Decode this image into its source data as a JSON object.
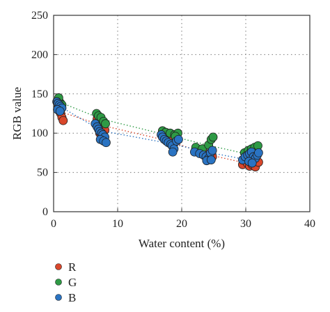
{
  "chart_data": {
    "type": "scatter",
    "title": "",
    "xlabel": "Water content (%)",
    "ylabel": "RGB value",
    "xlim": [
      0,
      40
    ],
    "ylim": [
      0,
      250
    ],
    "xticks": [
      0,
      10,
      20,
      30,
      40
    ],
    "yticks": [
      0,
      50,
      100,
      150,
      200,
      250
    ],
    "grid": true,
    "legend_position": "bottom-left",
    "series": [
      {
        "name": "R",
        "color": "#d9472b",
        "trend": [
          [
            0.8,
            128
          ],
          [
            7.5,
            110
          ],
          [
            18,
            90
          ],
          [
            24.5,
            72
          ],
          [
            31,
            60
          ]
        ],
        "points": [
          [
            0.7,
            132
          ],
          [
            0.9,
            128
          ],
          [
            1.1,
            125
          ],
          [
            1.3,
            120
          ],
          [
            1.5,
            116
          ],
          [
            0.8,
            135
          ],
          [
            6.8,
            118
          ],
          [
            7.1,
            114
          ],
          [
            7.4,
            110
          ],
          [
            7.7,
            107
          ],
          [
            8.0,
            104
          ],
          [
            7.2,
            100
          ],
          [
            17.2,
            96
          ],
          [
            17.6,
            93
          ],
          [
            18.2,
            90
          ],
          [
            18.8,
            87
          ],
          [
            19.2,
            92
          ],
          [
            22.5,
            78
          ],
          [
            23.5,
            75
          ],
          [
            24.2,
            72
          ],
          [
            24.8,
            70
          ],
          [
            24.0,
            68
          ],
          [
            29.5,
            60
          ],
          [
            30.2,
            62
          ],
          [
            30.6,
            58
          ],
          [
            31.0,
            60
          ],
          [
            31.5,
            57
          ],
          [
            32.0,
            63
          ]
        ]
      },
      {
        "name": "G",
        "color": "#2e9a45",
        "trend": [
          [
            0.8,
            140
          ],
          [
            7.5,
            118
          ],
          [
            18,
            97
          ],
          [
            24.5,
            84
          ],
          [
            31,
            72
          ]
        ],
        "points": [
          [
            0.7,
            142
          ],
          [
            0.9,
            140
          ],
          [
            1.1,
            138
          ],
          [
            1.3,
            136
          ],
          [
            0.8,
            145
          ],
          [
            6.7,
            125
          ],
          [
            7.0,
            122
          ],
          [
            7.4,
            120
          ],
          [
            7.8,
            115
          ],
          [
            8.1,
            112
          ],
          [
            17.0,
            103
          ],
          [
            17.5,
            101
          ],
          [
            18.2,
            100
          ],
          [
            18.9,
            98
          ],
          [
            19.4,
            100
          ],
          [
            19.0,
            96
          ],
          [
            22.2,
            82
          ],
          [
            23.2,
            80
          ],
          [
            24.2,
            85
          ],
          [
            24.6,
            92
          ],
          [
            24.9,
            95
          ],
          [
            29.8,
            75
          ],
          [
            30.4,
            78
          ],
          [
            30.9,
            80
          ],
          [
            31.4,
            82
          ],
          [
            31.9,
            84
          ]
        ]
      },
      {
        "name": "B",
        "color": "#2a73c2",
        "trend": [
          [
            0.8,
            135
          ],
          [
            7.5,
            103
          ],
          [
            18,
            87
          ],
          [
            24.5,
            75
          ],
          [
            31,
            65
          ]
        ],
        "points": [
          [
            0.5,
            140
          ],
          [
            0.7,
            138
          ],
          [
            0.9,
            136
          ],
          [
            1.1,
            134
          ],
          [
            1.3,
            132
          ],
          [
            0.6,
            130
          ],
          [
            1.0,
            128
          ],
          [
            6.5,
            112
          ],
          [
            6.8,
            108
          ],
          [
            7.0,
            105
          ],
          [
            7.2,
            102
          ],
          [
            7.5,
            100
          ],
          [
            7.7,
            98
          ],
          [
            8.0,
            95
          ],
          [
            7.3,
            92
          ],
          [
            7.8,
            90
          ],
          [
            8.2,
            88
          ],
          [
            16.8,
            98
          ],
          [
            17.0,
            95
          ],
          [
            17.3,
            92
          ],
          [
            17.6,
            90
          ],
          [
            17.9,
            88
          ],
          [
            18.3,
            86
          ],
          [
            18.5,
            84
          ],
          [
            18.8,
            80
          ],
          [
            19.2,
            90
          ],
          [
            19.5,
            92
          ],
          [
            18.6,
            76
          ],
          [
            22.0,
            76
          ],
          [
            22.8,
            74
          ],
          [
            23.4,
            72
          ],
          [
            23.8,
            70
          ],
          [
            24.2,
            68
          ],
          [
            24.5,
            75
          ],
          [
            24.8,
            78
          ],
          [
            23.9,
            65
          ],
          [
            24.6,
            66
          ],
          [
            29.5,
            66
          ],
          [
            29.9,
            70
          ],
          [
            30.3,
            72
          ],
          [
            30.6,
            74
          ],
          [
            30.9,
            76
          ],
          [
            31.2,
            70
          ],
          [
            31.5,
            68
          ],
          [
            31.8,
            72
          ],
          [
            32.0,
            75
          ],
          [
            30.5,
            64
          ],
          [
            31.0,
            62
          ]
        ]
      }
    ]
  }
}
